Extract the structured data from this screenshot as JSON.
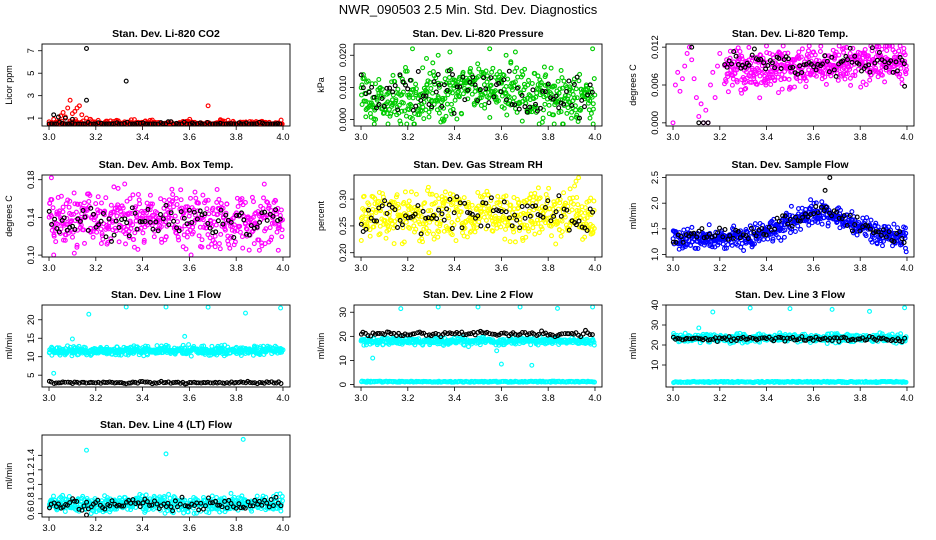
{
  "figure_title": "NWR_090503  2.5 Min. Std. Dev. Diagnostics",
  "colors": {
    "red": "#ff0000",
    "green": "#00cc00",
    "magenta": "#ff00ff",
    "yellow": "#ffff00",
    "blue": "#0000ff",
    "cyan": "#00ffff",
    "black": "#000000"
  },
  "chart_data": [
    {
      "id": "p1",
      "type": "scatter",
      "title": "Stan. Dev. Li-820 CO2",
      "ylabel": "Licor ppm",
      "xlim": [
        2.97,
        4.03
      ],
      "xticks": [
        "3.0",
        "3.2",
        "3.4",
        "3.6",
        "3.8",
        "4.0"
      ],
      "ylim": [
        0.3,
        7.6
      ],
      "yticks": [
        "1",
        "3",
        "5",
        "7"
      ],
      "series": [
        {
          "name": "color",
          "color": "red",
          "gen": {
            "base": 0.45,
            "amp": 0.25,
            "n": 420
          },
          "points": [
            [
              3.02,
              0.9
            ],
            [
              3.04,
              0.7
            ],
            [
              3.05,
              1.2
            ],
            [
              3.06,
              1.5
            ],
            [
              3.07,
              1.1
            ],
            [
              3.08,
              1.9
            ],
            [
              3.09,
              2.6
            ],
            [
              3.1,
              1.4
            ],
            [
              3.11,
              1.6
            ],
            [
              3.12,
              1.9
            ],
            [
              3.13,
              2.1
            ],
            [
              3.14,
              1.3
            ],
            [
              3.16,
              1.0
            ],
            [
              3.21,
              0.8
            ],
            [
              3.68,
              2.1
            ]
          ]
        },
        {
          "name": "black",
          "color": "black",
          "gen": {
            "base": 0.45,
            "amp": 0.15,
            "n": 90
          },
          "points": [
            [
              3.02,
              1.3
            ],
            [
              3.04,
              1.1
            ],
            [
              3.07,
              1.0
            ],
            [
              3.1,
              0.9
            ],
            [
              3.16,
              7.2
            ],
            [
              3.16,
              2.6
            ],
            [
              3.33,
              4.3
            ]
          ]
        }
      ]
    },
    {
      "id": "p2",
      "type": "scatter",
      "title": "Stan. Dev. Li-820 Pressure",
      "ylabel": "kPa",
      "xlim": [
        2.97,
        4.03
      ],
      "xticks": [
        "3.0",
        "3.2",
        "3.4",
        "3.6",
        "3.8",
        "4.0"
      ],
      "ylim": [
        -0.002,
        0.0235
      ],
      "yticks": [
        "0.000",
        "0.010",
        "0.020"
      ],
      "series": [
        {
          "name": "color",
          "color": "green",
          "gen": {
            "base": 0.006,
            "amp": 0.006,
            "n": 520,
            "bump": 0.0045
          },
          "points": [
            [
              3.22,
              0.022
            ],
            [
              3.28,
              0.019
            ],
            [
              3.33,
              0.02
            ],
            [
              3.38,
              0.021
            ],
            [
              3.55,
              0.022
            ],
            [
              3.62,
              0.02
            ],
            [
              3.64,
              0.018
            ],
            [
              3.66,
              0.021
            ],
            [
              3.99,
              0.022
            ]
          ]
        },
        {
          "name": "black",
          "color": "black",
          "gen": {
            "base": 0.007,
            "amp": 0.005,
            "n": 90,
            "bump": 0.004
          },
          "points": [
            [
              3.33,
              0.014
            ]
          ]
        }
      ]
    },
    {
      "id": "p3",
      "type": "scatter",
      "title": "Stan. Dev. Li-820 Temp.",
      "ylabel": "degrees C",
      "xlim": [
        2.97,
        4.03
      ],
      "xticks": [
        "3.0",
        "3.2",
        "3.4",
        "3.6",
        "3.8",
        "4.0"
      ],
      "ylim": [
        -0.0005,
        0.0125
      ],
      "yticks": [
        "0.000",
        "0.006",
        "0.012"
      ],
      "series": [
        {
          "name": "color",
          "color": "magenta",
          "gen": {
            "base": 0.009,
            "amp": 0.0025,
            "n": 480,
            "start": 3.22,
            "rise": 0.0012
          },
          "points": [
            [
              3.0,
              0.0
            ],
            [
              3.01,
              0.006
            ],
            [
              3.02,
              0.008
            ],
            [
              3.03,
              0.005
            ],
            [
              3.04,
              0.007
            ],
            [
              3.05,
              0.009
            ],
            [
              3.06,
              0.011
            ],
            [
              3.07,
              0.012
            ],
            [
              3.08,
              0.01
            ],
            [
              3.09,
              0.007
            ],
            [
              3.1,
              0.004
            ],
            [
              3.11,
              0.001
            ],
            [
              3.12,
              0.003
            ],
            [
              3.13,
              0.0
            ],
            [
              3.14,
              0.002
            ],
            [
              3.15,
              0.0
            ],
            [
              3.16,
              0.006
            ],
            [
              3.17,
              0.008
            ],
            [
              3.18,
              0.004
            ],
            [
              3.19,
              0.009
            ],
            [
              3.2,
              0.011
            ]
          ]
        },
        {
          "name": "black",
          "color": "black",
          "gen": {
            "base": 0.0095,
            "amp": 0.0015,
            "n": 80,
            "start": 3.22
          },
          "points": [
            [
              3.08,
              0.012
            ],
            [
              3.11,
              0.0
            ],
            [
              3.13,
              0.0
            ],
            [
              3.15,
              0.0
            ],
            [
              3.99,
              0.0058
            ]
          ]
        }
      ]
    },
    {
      "id": "p4",
      "type": "scatter",
      "title": "Stan. Dev. Amb. Box Temp.",
      "ylabel": "degrees C",
      "xlim": [
        2.97,
        4.03
      ],
      "xticks": [
        "3.0",
        "3.2",
        "3.4",
        "3.6",
        "3.8",
        "4.0"
      ],
      "ylim": [
        0.098,
        0.185
      ],
      "yticks": [
        "0.10",
        "0.14",
        "0.18"
      ],
      "series": [
        {
          "name": "color",
          "color": "magenta",
          "gen": {
            "base": 0.137,
            "amp": 0.022,
            "n": 520
          },
          "points": [
            [
              3.01,
              0.182
            ],
            [
              3.02,
              0.1
            ]
          ]
        },
        {
          "name": "black",
          "color": "black",
          "gen": {
            "base": 0.135,
            "amp": 0.013,
            "n": 90
          },
          "points": []
        }
      ]
    },
    {
      "id": "p5",
      "type": "scatter",
      "title": "Stan. Dev. Gas Stream RH",
      "ylabel": "percent",
      "xlim": [
        2.97,
        4.03
      ],
      "xticks": [
        "3.0",
        "3.2",
        "3.4",
        "3.6",
        "3.8",
        "4.0"
      ],
      "ylim": [
        0.192,
        0.345
      ],
      "yticks": [
        "0.20",
        "0.25",
        "0.30"
      ],
      "series": [
        {
          "name": "color",
          "color": "yellow",
          "gen": {
            "base": 0.272,
            "amp": 0.035,
            "n": 520
          },
          "points": [
            [
              3.93,
              0.34
            ],
            [
              3.29,
              0.2
            ]
          ]
        },
        {
          "name": "black",
          "color": "black",
          "gen": {
            "base": 0.27,
            "amp": 0.025,
            "n": 90
          },
          "points": []
        }
      ]
    },
    {
      "id": "p6",
      "type": "scatter",
      "title": "Stan. Dev. Sample Flow",
      "ylabel": "ml/min",
      "xlim": [
        2.97,
        4.03
      ],
      "xticks": [
        "3.0",
        "3.2",
        "3.4",
        "3.6",
        "3.8",
        "4.0"
      ],
      "ylim": [
        0.95,
        2.55
      ],
      "yticks": [
        "1.0",
        "1.5",
        "2.0",
        "2.5"
      ],
      "series": [
        {
          "name": "color",
          "color": "blue",
          "gen": {
            "base": 1.3,
            "amp": 0.17,
            "n": 520,
            "hump": 0.5
          },
          "points": []
        },
        {
          "name": "black",
          "color": "black",
          "gen": {
            "base": 1.35,
            "amp": 0.12,
            "n": 90,
            "hump": 0.5
          },
          "points": [
            [
              3.67,
              2.5
            ],
            [
              3.65,
              2.25
            ]
          ]
        }
      ]
    },
    {
      "id": "p7",
      "type": "scatter",
      "title": "Stan. Dev. Line 1 Flow",
      "ylabel": "ml/min",
      "xlim": [
        2.97,
        4.03
      ],
      "xticks": [
        "3.0",
        "3.2",
        "3.4",
        "3.6",
        "3.8",
        "4.0"
      ],
      "ylim": [
        1.8,
        24
      ],
      "yticks": [
        "5",
        "10",
        "15",
        "20"
      ],
      "series": [
        {
          "name": "color",
          "color": "cyan",
          "gen": {
            "base": 11.6,
            "amp": 0.9,
            "n": 520
          },
          "points": [
            [
              3.17,
              21.5
            ],
            [
              3.33,
              23.5
            ],
            [
              3.5,
              23.6
            ],
            [
              3.68,
              23.4
            ],
            [
              3.84,
              21.8
            ],
            [
              3.99,
              23.2
            ],
            [
              3.1,
              14.8
            ],
            [
              3.58,
              15.5
            ],
            [
              3.02,
              5.5
            ]
          ]
        },
        {
          "name": "black",
          "color": "black",
          "gen": {
            "base": 3.0,
            "amp": 0.25,
            "n": 100
          },
          "points": []
        }
      ]
    },
    {
      "id": "p8",
      "type": "scatter",
      "title": "Stan. Dev. Line 2 Flow",
      "ylabel": "ml/min",
      "xlim": [
        2.97,
        4.03
      ],
      "xticks": [
        "3.0",
        "3.2",
        "3.4",
        "3.6",
        "3.8",
        "4.0"
      ],
      "ylim": [
        -1,
        33
      ],
      "yticks": [
        "0",
        "10",
        "20",
        "30"
      ],
      "series": [
        {
          "name": "color",
          "color": "cyan",
          "gen": {
            "base": 18.0,
            "amp": 1.2,
            "n": 420,
            "low": 1.2
          },
          "points": [
            [
              3.17,
              31.5
            ],
            [
              3.33,
              32.5
            ],
            [
              3.5,
              32.5
            ],
            [
              3.68,
              32.2
            ],
            [
              3.84,
              31.6
            ],
            [
              3.99,
              32.8
            ],
            [
              3.05,
              11.0
            ],
            [
              3.6,
              8.5
            ],
            [
              3.73,
              8.0
            ],
            [
              3.58,
              14.0
            ]
          ]
        },
        {
          "name": "black",
          "color": "black",
          "gen": {
            "base": 21.0,
            "amp": 0.8,
            "n": 100
          },
          "points": []
        }
      ]
    },
    {
      "id": "p9",
      "type": "scatter",
      "title": "Stan. Dev. Line 3 Flow",
      "ylabel": "ml/min",
      "xlim": [
        2.97,
        4.03
      ],
      "xticks": [
        "3.0",
        "3.2",
        "3.4",
        "3.6",
        "3.8",
        "4.0"
      ],
      "ylim": [
        -1,
        40
      ],
      "yticks": [
        "10",
        "20",
        "30",
        "40"
      ],
      "series": [
        {
          "name": "color",
          "color": "cyan",
          "gen": {
            "base": 23.5,
            "amp": 1.6,
            "n": 420,
            "low": 1.5
          },
          "points": [
            [
              3.17,
              36.5
            ],
            [
              3.33,
              38.5
            ],
            [
              3.5,
              38.2
            ],
            [
              3.68,
              37.8
            ],
            [
              3.84,
              36.8
            ],
            [
              3.99,
              38.6
            ],
            [
              3.11,
              28.5
            ],
            [
              3.61,
              22.0
            ]
          ]
        },
        {
          "name": "black",
          "color": "black",
          "gen": {
            "base": 23.0,
            "amp": 1.0,
            "n": 100
          },
          "points": []
        }
      ]
    },
    {
      "id": "p10",
      "type": "scatter",
      "title": "Stan. Dev. Line 4 (LT) Flow",
      "ylabel": "ml/min",
      "xlim": [
        2.97,
        4.03
      ],
      "xticks": [
        "3.0",
        "3.2",
        "3.4",
        "3.6",
        "3.8",
        "4.0"
      ],
      "ylim": [
        0.55,
        1.68
      ],
      "yticks": [
        "0.6",
        "0.8",
        "1.0",
        "1.2",
        "1.4"
      ],
      "series": [
        {
          "name": "color",
          "color": "cyan",
          "gen": {
            "base": 0.73,
            "amp": 0.08,
            "n": 520
          },
          "points": [
            [
              3.16,
              1.47
            ],
            [
              3.5,
              1.42
            ],
            [
              3.83,
              1.62
            ],
            [
              3.62,
              0.6
            ]
          ]
        },
        {
          "name": "black",
          "color": "black",
          "gen": {
            "base": 0.72,
            "amp": 0.07,
            "n": 100
          },
          "points": [
            [
              3.16,
              0.57
            ]
          ]
        }
      ]
    }
  ]
}
